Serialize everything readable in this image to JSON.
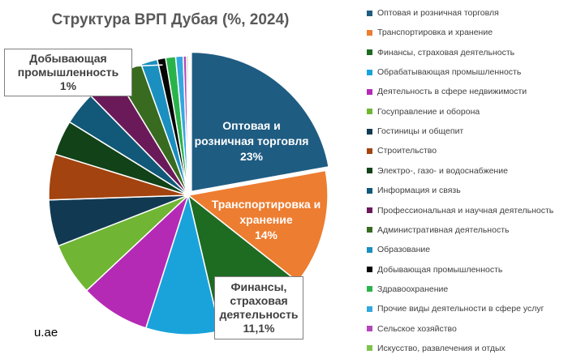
{
  "chart_data": {
    "type": "pie",
    "title": "Структура ВРП Дубая (%, 2024)",
    "source": "u.ae",
    "legend_position": "right",
    "slices": [
      {
        "name": "Оптовая и розничная торговля",
        "value": 23,
        "color": "#1F5C82",
        "label": "Оптовая и розничная торговля",
        "label_value": "23%"
      },
      {
        "name": "Транспортировка и хранение",
        "value": 14,
        "color": "#ED7D31",
        "label": "Транспортировка и хранение",
        "label_value": "14%"
      },
      {
        "name": "Финансы, страховая деятельность",
        "value": 11.1,
        "color": "#1E6B22",
        "label": "Финансы, страховая деятельность",
        "label_value": "11,1%"
      },
      {
        "name": "Обрабатывающая промышленность",
        "value": 8.9,
        "color": "#1AA3DB",
        "label": "",
        "label_value": ""
      },
      {
        "name": "Деятельность в сфере недвижимости",
        "value": 8.4,
        "color": "#B52AB5",
        "label": "",
        "label_value": ""
      },
      {
        "name": "Госуправление и оборона",
        "value": 6.3,
        "color": "#70B534",
        "label": "",
        "label_value": ""
      },
      {
        "name": "Гостиницы и общепит",
        "value": 5.6,
        "color": "#113A52",
        "label": "",
        "label_value": ""
      },
      {
        "name": "Строительство",
        "value": 5.5,
        "color": "#A3430F",
        "label": "",
        "label_value": ""
      },
      {
        "name": "Электро-, газо- и водоснабжение",
        "value": 4.2,
        "color": "#124217",
        "label": "",
        "label_value": ""
      },
      {
        "name": "Информация и связь",
        "value": 4.0,
        "color": "#125878",
        "label": "",
        "label_value": ""
      },
      {
        "name": "Профессиональная и научная деятельность",
        "value": 3.8,
        "color": "#6B1A59",
        "label": "",
        "label_value": ""
      },
      {
        "name": "Административная  деятельность",
        "value": 3.3,
        "color": "#386B20",
        "label": "",
        "label_value": ""
      },
      {
        "name": "Образование",
        "value": 2.0,
        "color": "#1B8FC0",
        "label": "",
        "label_value": ""
      },
      {
        "name": "Добывающая промышленность",
        "value": 1.0,
        "color": "#050505",
        "label": "Добывающая промышленность",
        "label_value": "1%"
      },
      {
        "name": "Здравоохранение",
        "value": 1.2,
        "color": "#2BB34B",
        "label": "",
        "label_value": ""
      },
      {
        "name": "Прочие виды деятельности в сфере услуг",
        "value": 0.9,
        "color": "#33A8DF",
        "label": "",
        "label_value": ""
      },
      {
        "name": "Сельское хозяйство",
        "value": 0.4,
        "color": "#B446BA",
        "label": "",
        "label_value": ""
      },
      {
        "name": "Искусство, развлечения и отдых",
        "value": 0.2,
        "color": "#7FC24E",
        "label": "",
        "label_value": ""
      }
    ]
  }
}
